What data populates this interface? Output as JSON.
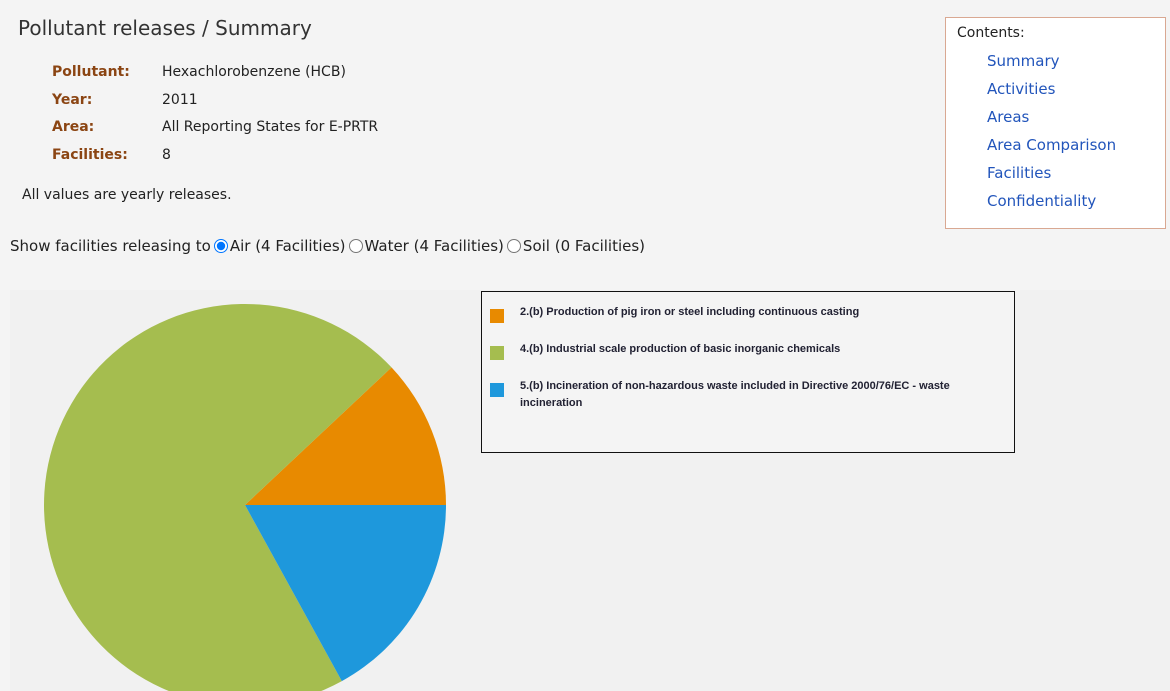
{
  "header": {
    "title": "Pollutant releases / Summary"
  },
  "fields": [
    {
      "label": "Pollutant:",
      "value": "Hexachlorobenzene (HCB)"
    },
    {
      "label": "Year:",
      "value": "2011"
    },
    {
      "label": "Area:",
      "value": "All Reporting States for E-PRTR"
    },
    {
      "label": "Facilities:",
      "value": "8"
    }
  ],
  "note": "All values are yearly releases.",
  "filter": {
    "label": "Show facilities releasing to",
    "options": [
      "Air (4 Facilities)",
      "Water (4 Facilities)",
      "Soil (0 Facilities)"
    ],
    "selected": 0
  },
  "contents": {
    "title": "Contents:",
    "links": [
      "Summary",
      "Activities",
      "Areas",
      "Area Comparison",
      "Facilities",
      "Confidentiality"
    ]
  },
  "chart_data": {
    "type": "pie",
    "categories": [
      "2.(b) Production of pig iron or steel including continuous casting",
      "4.(b) Industrial scale production of basic inorganic chemicals",
      "5.(b) Incineration of non-hazardous waste included in Directive 2000/76/EC - waste incineration"
    ],
    "values": [
      12,
      71,
      17
    ],
    "colors": [
      "#e88a00",
      "#a5bd4f",
      "#1e98dc"
    ]
  }
}
